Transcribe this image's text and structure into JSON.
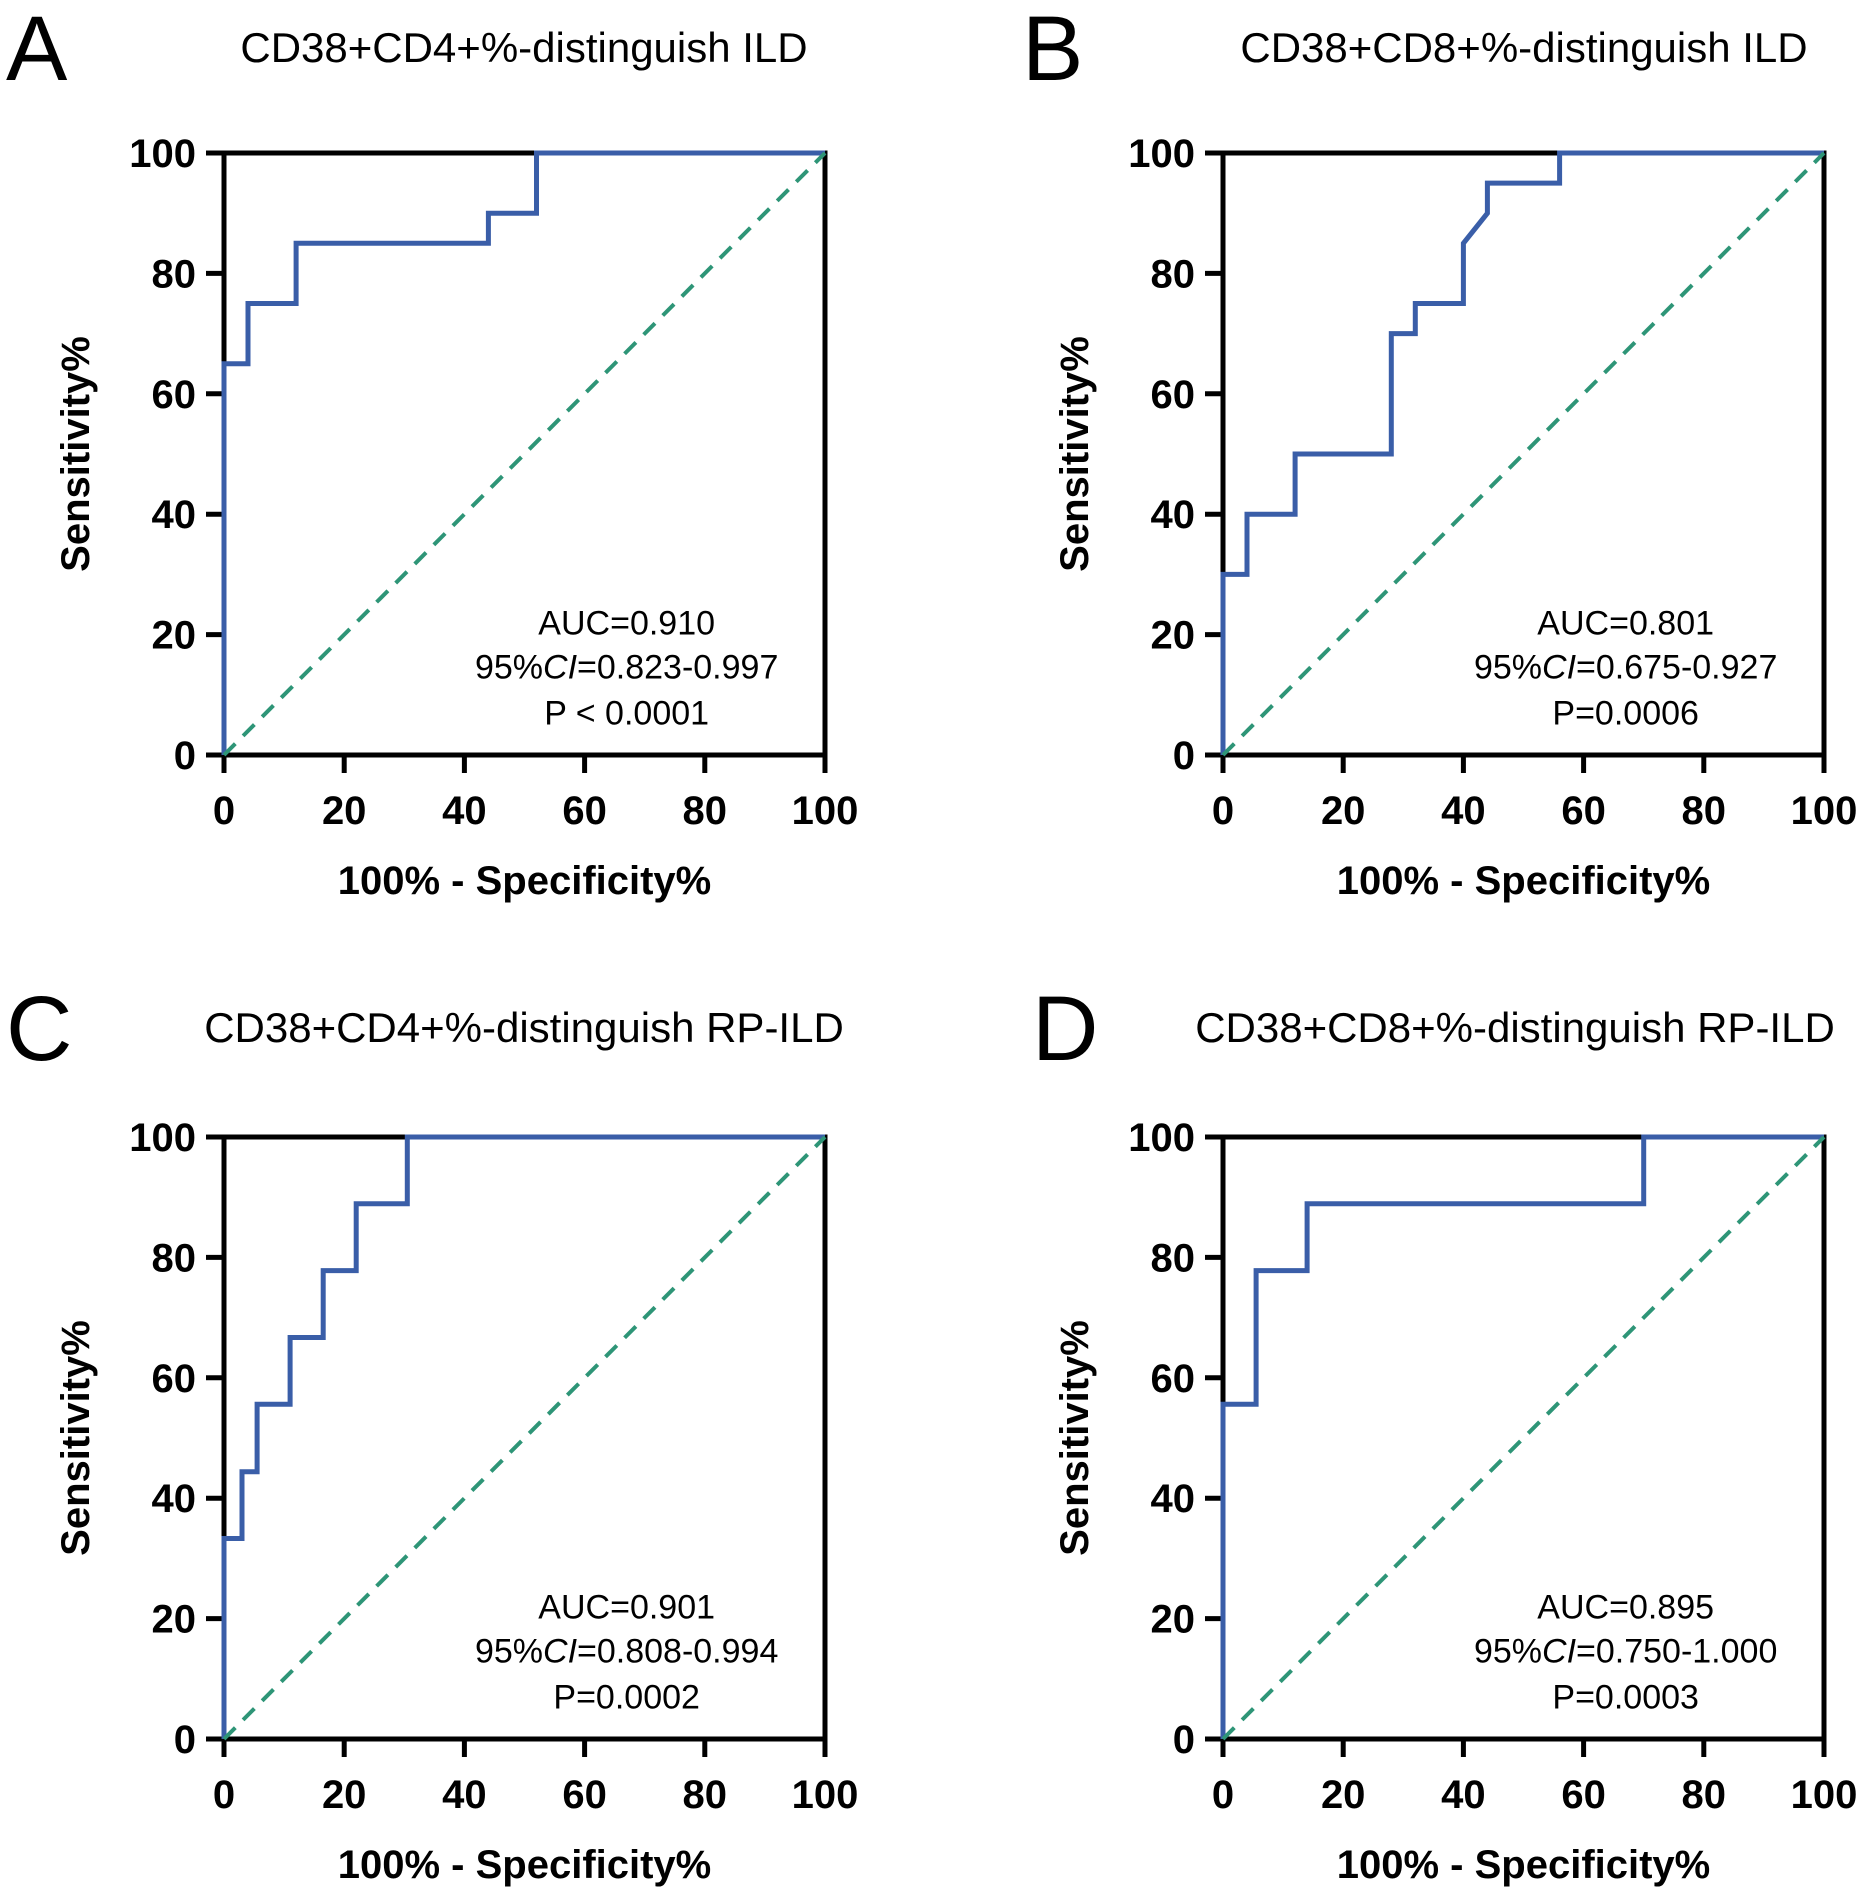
{
  "chart_data": [
    {
      "type": "line",
      "panel_label": "A",
      "title": "CD38+CD4+%-distinguish ILD",
      "xlabel": "100% - Specificity%",
      "ylabel": "Sensitivity%",
      "xlim": [
        0,
        100
      ],
      "ylim": [
        0,
        100
      ],
      "xticks": [
        "0",
        "20",
        "40",
        "60",
        "80",
        "100"
      ],
      "yticks": [
        "0",
        "20",
        "40",
        "60",
        "80",
        "100"
      ],
      "series": [
        {
          "name": "ROC",
          "color": "#3a5ea8",
          "x": [
            0,
            0,
            4,
            4,
            12,
            12,
            44,
            44,
            52,
            52,
            100
          ],
          "y": [
            0,
            65,
            65,
            75,
            75,
            85,
            85,
            90,
            90,
            100,
            100
          ]
        },
        {
          "name": "Reference",
          "color": "#2e9577",
          "dashed": true,
          "x": [
            0,
            100
          ],
          "y": [
            0,
            100
          ]
        }
      ],
      "annotation": {
        "auc": "AUC=0.910",
        "ci_prefix": "95%",
        "ci_italic": "CI",
        "ci_value": "=0.823-0.997",
        "p": "P < 0.0001"
      }
    },
    {
      "type": "line",
      "panel_label": "B",
      "title": "CD38+CD8+%-distinguish ILD",
      "xlabel": "100% - Specificity%",
      "ylabel": "Sensitivity%",
      "xlim": [
        0,
        100
      ],
      "ylim": [
        0,
        100
      ],
      "xticks": [
        "0",
        "20",
        "40",
        "60",
        "80",
        "100"
      ],
      "yticks": [
        "0",
        "20",
        "40",
        "60",
        "80",
        "100"
      ],
      "series": [
        {
          "name": "ROC",
          "color": "#3a5ea8",
          "x": [
            0,
            0,
            4,
            4,
            12,
            12,
            28,
            28,
            32,
            32,
            40,
            40,
            44,
            44,
            56,
            56,
            100
          ],
          "y": [
            0,
            30,
            30,
            40,
            40,
            50,
            50,
            70,
            70,
            75,
            75,
            85,
            90,
            95,
            95,
            100,
            100
          ]
        },
        {
          "name": "Reference",
          "color": "#2e9577",
          "dashed": true,
          "x": [
            0,
            100
          ],
          "y": [
            0,
            100
          ]
        }
      ],
      "annotation": {
        "auc": "AUC=0.801",
        "ci_prefix": "95%",
        "ci_italic": "CI",
        "ci_value": "=0.675-0.927",
        "p": "P=0.0006"
      }
    },
    {
      "type": "line",
      "panel_label": "C",
      "title": "CD38+CD4+%-distinguish RP-ILD",
      "xlabel": "100% - Specificity%",
      "ylabel": "Sensitivity%",
      "xlim": [
        0,
        100
      ],
      "ylim": [
        0,
        100
      ],
      "xticks": [
        "0",
        "20",
        "40",
        "60",
        "80",
        "100"
      ],
      "yticks": [
        "0",
        "20",
        "40",
        "60",
        "80",
        "100"
      ],
      "series": [
        {
          "name": "ROC",
          "color": "#3a5ea8",
          "x": [
            0,
            0,
            3,
            3,
            5.5,
            5.5,
            11,
            11,
            16.5,
            16.5,
            22,
            22,
            30.5,
            30.5,
            100
          ],
          "y": [
            0,
            33.3,
            33.3,
            44.4,
            44.4,
            55.6,
            55.6,
            66.7,
            66.7,
            77.8,
            77.8,
            88.9,
            88.9,
            100,
            100
          ]
        },
        {
          "name": "Reference",
          "color": "#2e9577",
          "dashed": true,
          "x": [
            0,
            100
          ],
          "y": [
            0,
            100
          ]
        }
      ],
      "annotation": {
        "auc": "AUC=0.901",
        "ci_prefix": "95%",
        "ci_italic": "CI",
        "ci_value": "=0.808-0.994",
        "p": "P=0.0002"
      }
    },
    {
      "type": "line",
      "panel_label": "D",
      "title": "CD38+CD8+%-distinguish RP-ILD",
      "xlabel": "100% - Specificity%",
      "ylabel": "Sensitivity%",
      "xlim": [
        0,
        100
      ],
      "ylim": [
        0,
        100
      ],
      "xticks": [
        "0",
        "20",
        "40",
        "60",
        "80",
        "100"
      ],
      "yticks": [
        "0",
        "20",
        "40",
        "60",
        "80",
        "100"
      ],
      "series": [
        {
          "name": "ROC",
          "color": "#3a5ea8",
          "x": [
            0,
            0,
            5.5,
            5.5,
            14,
            14,
            70,
            70,
            100
          ],
          "y": [
            0,
            55.6,
            55.6,
            77.8,
            77.8,
            88.9,
            88.9,
            100,
            100
          ]
        },
        {
          "name": "Reference",
          "color": "#2e9577",
          "dashed": true,
          "x": [
            0,
            100
          ],
          "y": [
            0,
            100
          ]
        }
      ],
      "annotation": {
        "auc": "AUC=0.895",
        "ci_prefix": "95%",
        "ci_italic": "CI",
        "ci_value": "=0.750-1.000",
        "p": "P=0.0003"
      }
    }
  ]
}
